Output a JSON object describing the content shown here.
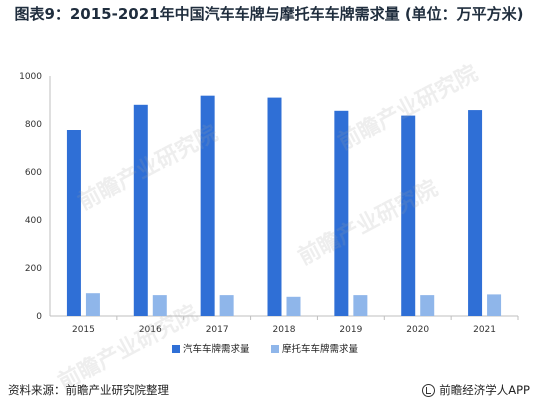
{
  "title": "图表9：2015-2021年中国汽车车牌与摩托车车牌需求量 (单位：万平方米)",
  "source": "资料来源：前瞻产业研究院整理",
  "brand": "前瞻经济学人APP",
  "watermark": "前瞻产业研究院",
  "colors": {
    "series1": "#2f6fd6",
    "series2": "#8fb6ea",
    "axis": "#bfbfbf"
  },
  "chart_data": {
    "type": "bar",
    "title": "图表9：2015-2021年中国汽车车牌与摩托车车牌需求量 (单位：万平方米)",
    "categories": [
      "2015",
      "2016",
      "2017",
      "2018",
      "2019",
      "2020",
      "2021"
    ],
    "series": [
      {
        "name": "汽车车牌需求量",
        "values": [
          775,
          880,
          918,
          910,
          855,
          835,
          858
        ]
      },
      {
        "name": "摩托车车牌需求量",
        "values": [
          95,
          87,
          87,
          80,
          87,
          87,
          90
        ]
      }
    ],
    "ylim": [
      0,
      1000
    ],
    "yticks": [
      0,
      200,
      400,
      600,
      800,
      1000
    ],
    "grid": false,
    "legend": "bottom"
  }
}
